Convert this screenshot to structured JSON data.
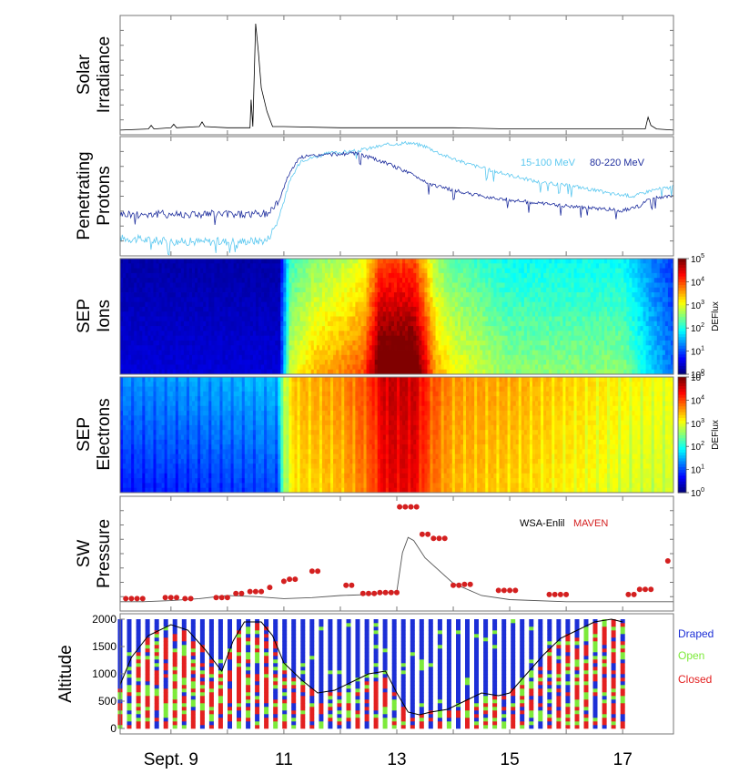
{
  "chart_data": [
    {
      "type": "line",
      "ylabel_lines": [
        "Solar",
        "Irradiance"
      ],
      "series": [
        {
          "color": "#000000",
          "x": [
            8.1,
            8.6,
            8.65,
            8.7,
            9.0,
            9.05,
            9.1,
            9.5,
            9.55,
            9.6,
            10.0,
            10.4,
            10.42,
            10.45,
            10.5,
            10.55,
            10.6,
            10.7,
            10.8,
            11,
            12,
            13,
            14,
            15,
            16,
            17,
            17.4,
            17.45,
            17.5,
            17.6,
            17.9
          ],
          "y": [
            0.04,
            0.05,
            0.08,
            0.05,
            0.06,
            0.09,
            0.06,
            0.07,
            0.11,
            0.07,
            0.06,
            0.06,
            0.3,
            0.07,
            0.95,
            0.7,
            0.4,
            0.2,
            0.07,
            0.07,
            0.06,
            0.06,
            0.06,
            0.05,
            0.05,
            0.05,
            0.05,
            0.15,
            0.08,
            0.05,
            0.04
          ]
        }
      ]
    },
    {
      "type": "line",
      "ylabel_lines": [
        "Penetrating",
        "Protons"
      ],
      "legend": [
        {
          "label": "15-100 MeV",
          "color": "#5bc8f0"
        },
        {
          "label": "80-220 MeV",
          "color": "#1f2f9e"
        }
      ],
      "series": [
        {
          "name": "15-100 MeV",
          "color": "#5bc8f0",
          "x": [
            8.1,
            9,
            10,
            10.7,
            10.9,
            11.1,
            11.3,
            11.8,
            12.3,
            12.8,
            13.2,
            13.5,
            13.8,
            14.2,
            14.8,
            15.5,
            16.2,
            16.8,
            17.2,
            17.5,
            17.9
          ],
          "y": [
            0.15,
            0.12,
            0.12,
            0.13,
            0.3,
            0.62,
            0.8,
            0.86,
            0.88,
            0.93,
            0.95,
            0.92,
            0.85,
            0.78,
            0.7,
            0.62,
            0.58,
            0.52,
            0.5,
            0.55,
            0.58
          ]
        },
        {
          "name": "80-220 MeV",
          "color": "#1f2f9e",
          "x": [
            8.1,
            9,
            10,
            10.7,
            10.9,
            11.1,
            11.3,
            11.8,
            12.3,
            12.8,
            13.2,
            13.6,
            14,
            14.5,
            15,
            15.5,
            16,
            16.5,
            17,
            17.3,
            17.5,
            17.9
          ],
          "y": [
            0.35,
            0.35,
            0.35,
            0.35,
            0.45,
            0.7,
            0.83,
            0.85,
            0.86,
            0.78,
            0.7,
            0.6,
            0.55,
            0.5,
            0.47,
            0.44,
            0.42,
            0.4,
            0.38,
            0.42,
            0.48,
            0.5
          ]
        }
      ]
    },
    {
      "type": "heatmap",
      "ylabel_lines": [
        "SEP",
        "Ions"
      ],
      "colorbar": {
        "label": "DEFlux",
        "ticks": [
          {
            "base": "10",
            "exp": "0"
          },
          {
            "base": "10",
            "exp": "1"
          },
          {
            "base": "10",
            "exp": "2"
          },
          {
            "base": "10",
            "exp": "3"
          },
          {
            "base": "10",
            "exp": "4"
          },
          {
            "base": "10",
            "exp": "5"
          }
        ]
      },
      "profile": {
        "x": [
          8.1,
          10.9,
          11.0,
          11.1,
          11.5,
          12.0,
          12.4,
          12.6,
          12.7,
          13.3,
          13.5,
          13.7,
          14.0,
          15.0,
          16.0,
          17.0,
          17.5,
          17.9
        ],
        "level": [
          0.05,
          0.05,
          0.25,
          0.5,
          0.6,
          0.65,
          0.7,
          0.85,
          0.95,
          0.95,
          0.8,
          0.62,
          0.55,
          0.45,
          0.45,
          0.45,
          0.3,
          0.2
        ]
      }
    },
    {
      "type": "heatmap",
      "ylabel_lines": [
        "SEP",
        "Electrons"
      ],
      "colorbar": {
        "label": "DEFlux",
        "ticks": [
          {
            "base": "10",
            "exp": "0"
          },
          {
            "base": "10",
            "exp": "1"
          },
          {
            "base": "10",
            "exp": "2"
          },
          {
            "base": "10",
            "exp": "3"
          },
          {
            "base": "10",
            "exp": "4"
          },
          {
            "base": "10",
            "exp": "5"
          }
        ]
      },
      "profile": {
        "x": [
          8.1,
          10.9,
          11.0,
          11.2,
          12.0,
          12.5,
          12.8,
          13.3,
          13.6,
          14.0,
          15.0,
          16.0,
          17.0,
          17.9
        ],
        "level": [
          0.2,
          0.25,
          0.55,
          0.68,
          0.72,
          0.8,
          0.92,
          0.92,
          0.8,
          0.72,
          0.7,
          0.66,
          0.62,
          0.6
        ]
      }
    },
    {
      "type": "line",
      "ylabel_lines": [
        "SW",
        "Pressure"
      ],
      "legend": [
        {
          "label": "WSA-Enlil",
          "color": "#000000"
        },
        {
          "label": "MAVEN",
          "color": "#d42020"
        }
      ],
      "series": [
        {
          "name": "WSA-Enlil",
          "color": "#000000",
          "style": "line",
          "x": [
            8.1,
            8.5,
            9,
            9.5,
            10,
            10.5,
            11,
            11.5,
            12,
            12.5,
            13,
            13.1,
            13.2,
            13.3,
            13.5,
            14,
            14.5,
            15,
            16,
            17,
            17.9
          ],
          "y": [
            0.02,
            0.02,
            0.03,
            0.05,
            0.08,
            0.07,
            0.05,
            0.06,
            0.08,
            0.09,
            0.12,
            0.5,
            0.65,
            0.62,
            0.45,
            0.2,
            0.08,
            0.04,
            0.02,
            0.02,
            0.02
          ]
        },
        {
          "name": "MAVEN",
          "color": "#d42020",
          "style": "markers",
          "x": [
            8.2,
            8.3,
            8.4,
            8.5,
            8.9,
            9.0,
            9.1,
            9.25,
            9.35,
            9.8,
            9.9,
            10.0,
            10.15,
            10.25,
            10.4,
            10.5,
            10.6,
            10.75,
            11.0,
            11.1,
            11.2,
            11.5,
            11.6,
            12.1,
            12.2,
            12.4,
            12.5,
            12.6,
            12.7,
            12.8,
            12.9,
            13.0,
            13.05,
            13.15,
            13.25,
            13.35,
            13.45,
            13.55,
            13.65,
            13.75,
            13.85,
            14.0,
            14.1,
            14.2,
            14.3,
            14.8,
            14.9,
            15.0,
            15.1,
            15.7,
            15.8,
            15.9,
            16.0,
            17.1,
            17.2,
            17.3,
            17.4,
            17.5,
            17.8
          ],
          "y": [
            0.05,
            0.05,
            0.05,
            0.05,
            0.06,
            0.06,
            0.06,
            0.05,
            0.05,
            0.06,
            0.06,
            0.06,
            0.1,
            0.1,
            0.12,
            0.12,
            0.12,
            0.16,
            0.22,
            0.24,
            0.24,
            0.32,
            0.32,
            0.18,
            0.18,
            0.1,
            0.1,
            0.1,
            0.11,
            0.11,
            0.11,
            0.11,
            0.95,
            0.95,
            0.95,
            0.95,
            0.68,
            0.68,
            0.64,
            0.64,
            0.64,
            0.18,
            0.18,
            0.19,
            0.19,
            0.13,
            0.13,
            0.13,
            0.13,
            0.09,
            0.09,
            0.09,
            0.09,
            0.09,
            0.09,
            0.14,
            0.14,
            0.14,
            0.42
          ]
        }
      ]
    },
    {
      "type": "scatter",
      "ylabel_lines": [
        "Altitude"
      ],
      "ylim": [
        0,
        2000
      ],
      "yticks": [
        "0",
        "500",
        "1000",
        "1500",
        "2000"
      ],
      "legend": [
        {
          "label": "Draped",
          "color": "#1c2fd6"
        },
        {
          "label": "Open",
          "color": "#7dea3a"
        },
        {
          "label": "Closed",
          "color": "#e32020"
        }
      ],
      "orbits": {
        "start": 8.1,
        "end": 17.0,
        "count": 56
      },
      "boundary": {
        "x": [
          8.1,
          8.3,
          8.6,
          9.0,
          9.3,
          9.6,
          9.9,
          10.1,
          10.3,
          10.6,
          10.8,
          11.0,
          11.3,
          11.6,
          11.9,
          12.2,
          12.5,
          12.8,
          13.0,
          13.2,
          13.4,
          13.6,
          13.9,
          14.2,
          14.5,
          14.8,
          15.0,
          15.3,
          15.6,
          15.9,
          16.2,
          16.5,
          16.8,
          17.0
        ],
        "y": [
          800,
          1300,
          1700,
          1900,
          1800,
          1450,
          1050,
          1600,
          1950,
          1950,
          1700,
          1200,
          900,
          650,
          700,
          850,
          1000,
          1050,
          650,
          300,
          250,
          300,
          350,
          500,
          650,
          600,
          650,
          1000,
          1350,
          1650,
          1800,
          1950,
          2000,
          1950
        ]
      }
    }
  ],
  "xaxis": {
    "range": [
      8.1,
      17.9
    ],
    "ticks": [
      {
        "value": 9,
        "label": "Sept. 9"
      },
      {
        "value": 11,
        "label": "11"
      },
      {
        "value": 13,
        "label": "13"
      },
      {
        "value": 15,
        "label": "15"
      },
      {
        "value": 17,
        "label": "17"
      }
    ]
  }
}
